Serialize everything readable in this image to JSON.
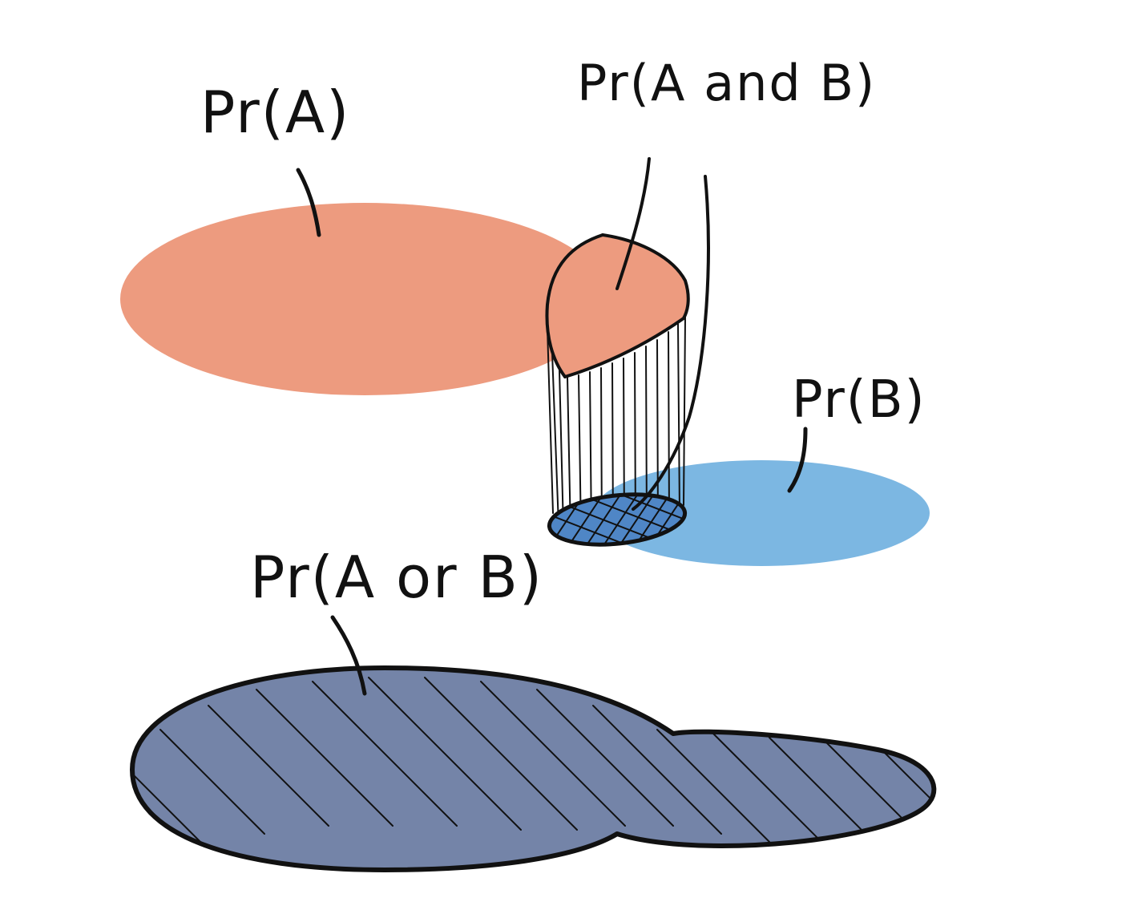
{
  "labels": {
    "a": "Pr(A)",
    "b": "Pr(B)",
    "a_and_b": "Pr(A and B)",
    "a_or_b": "Pr(A or B)"
  },
  "colors": {
    "event_a": "#ED9B7F",
    "event_b": "#7CB7E2",
    "union": "#7484A8",
    "ink": "#111111",
    "background": "#FFFFFF"
  }
}
